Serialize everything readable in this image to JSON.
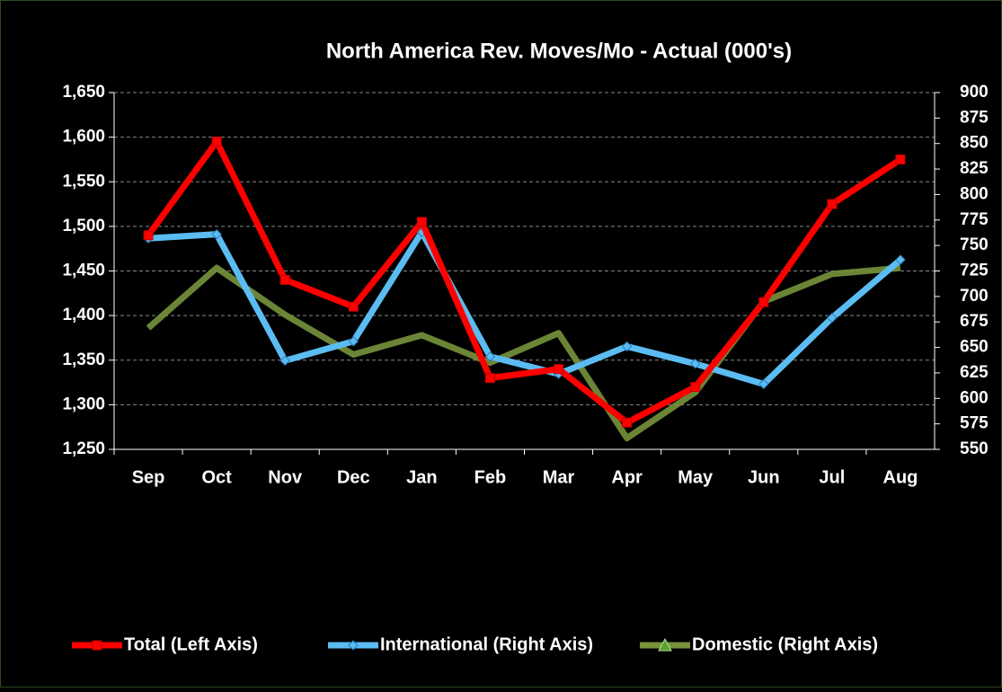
{
  "chart_data": {
    "type": "line",
    "title": "North America Rev. Moves/Mo - Actual (000's)",
    "categories": [
      "Sep",
      "Oct",
      "Nov",
      "Dec",
      "Jan",
      "Feb",
      "Mar",
      "Apr",
      "May",
      "Jun",
      "Jul",
      "Aug"
    ],
    "series": [
      {
        "name": "Total (Left Axis)",
        "color": "#ff0000",
        "marker": "square",
        "axis": "y",
        "values": [
          1490,
          1595,
          1440,
          1410,
          1505,
          1330,
          1340,
          1280,
          1320,
          1415,
          1525,
          1575
        ]
      },
      {
        "name": "International (Right Axis)",
        "color": "#5bbcf2",
        "marker": "diamond",
        "axis": "y2",
        "values": [
          757,
          761,
          637,
          656,
          763,
          641,
          624,
          651,
          634,
          614,
          679,
          736
        ]
      },
      {
        "name": "Domestic (Right Axis)",
        "color": "#77933c",
        "marker": "triangle",
        "axis": "y2",
        "values": [
          669,
          728,
          682,
          643,
          662,
          635,
          664,
          561,
          606,
          695,
          722,
          728
        ]
      }
    ],
    "ylim": [
      1250,
      1650
    ],
    "yticks": [
      {
        "value": 1250,
        "label": "1,250"
      },
      {
        "value": 1300,
        "label": "1,300"
      },
      {
        "value": 1350,
        "label": "1,350"
      },
      {
        "value": 1400,
        "label": "1,400"
      },
      {
        "value": 1450,
        "label": "1,450"
      },
      {
        "value": 1500,
        "label": "1,500"
      },
      {
        "value": 1550,
        "label": "1,550"
      },
      {
        "value": 1600,
        "label": "1,600"
      },
      {
        "value": 1650,
        "label": "1,650"
      }
    ],
    "y2lim": [
      550,
      900
    ],
    "y2ticks": [
      550,
      575,
      600,
      625,
      650,
      675,
      700,
      725,
      750,
      775,
      800,
      825,
      850,
      875,
      900
    ],
    "grid": true
  }
}
